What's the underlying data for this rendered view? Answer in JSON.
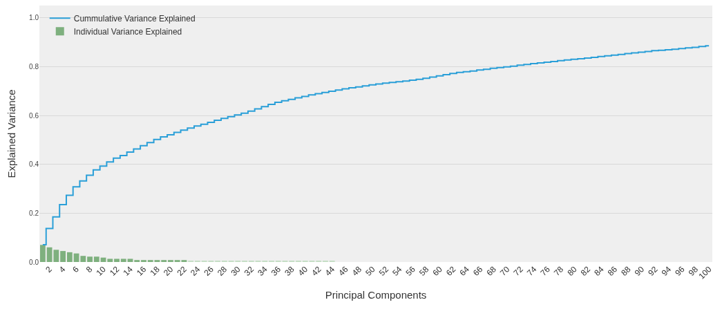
{
  "chart_data": {
    "type": "bar",
    "xlabel": "Principal Components",
    "ylabel": "Explained Variance",
    "x": [
      1,
      2,
      3,
      4,
      5,
      6,
      7,
      8,
      9,
      10,
      11,
      12,
      13,
      14,
      15,
      16,
      17,
      18,
      19,
      20,
      21,
      22,
      23,
      24,
      25,
      26,
      27,
      28,
      29,
      30,
      31,
      32,
      33,
      34,
      35,
      36,
      37,
      38,
      39,
      40,
      41,
      42,
      43,
      44,
      45,
      46,
      47,
      48,
      49,
      50,
      51,
      52,
      53,
      54,
      55,
      56,
      57,
      58,
      59,
      60,
      61,
      62,
      63,
      64,
      65,
      66,
      67,
      68,
      69,
      70,
      71,
      72,
      73,
      74,
      75,
      76,
      77,
      78,
      79,
      80,
      81,
      82,
      83,
      84,
      85,
      86,
      87,
      88,
      89,
      90,
      91,
      92,
      93,
      94,
      95,
      96,
      97,
      98,
      99,
      100
    ],
    "series": [
      {
        "type": "step",
        "name": "Cummulative Variance Explained",
        "color": "#2a9fd8",
        "values": [
          0.071,
          0.137,
          0.185,
          0.235,
          0.273,
          0.308,
          0.332,
          0.355,
          0.377,
          0.393,
          0.41,
          0.425,
          0.436,
          0.45,
          0.463,
          0.476,
          0.489,
          0.502,
          0.512,
          0.521,
          0.531,
          0.54,
          0.548,
          0.557,
          0.564,
          0.572,
          0.58,
          0.588,
          0.595,
          0.602,
          0.609,
          0.618,
          0.627,
          0.636,
          0.645,
          0.654,
          0.66,
          0.666,
          0.672,
          0.678,
          0.684,
          0.689,
          0.694,
          0.699,
          0.704,
          0.709,
          0.713,
          0.717,
          0.721,
          0.725,
          0.729,
          0.732,
          0.735,
          0.738,
          0.741,
          0.744,
          0.748,
          0.752,
          0.757,
          0.762,
          0.767,
          0.772,
          0.776,
          0.779,
          0.782,
          0.786,
          0.789,
          0.793,
          0.796,
          0.799,
          0.802,
          0.806,
          0.809,
          0.812,
          0.815,
          0.818,
          0.821,
          0.824,
          0.827,
          0.83,
          0.832,
          0.835,
          0.838,
          0.841,
          0.844,
          0.847,
          0.85,
          0.853,
          0.856,
          0.859,
          0.862,
          0.865,
          0.867,
          0.869,
          0.871,
          0.874,
          0.877,
          0.879,
          0.882,
          0.885
        ]
      },
      {
        "name": "Individual Variance Explained",
        "colors": [
          "#7eb07e",
          "#7eb07e",
          "#7eb07e",
          "#7eb07e",
          "#7eb07e",
          "#7eb07e",
          "#7eb07e",
          "#7eb07e",
          "#7eb07e",
          "#7eb07e",
          "#7eb07e",
          "#7eb07e",
          "#7eb07e",
          "#7eb07e",
          "#7eb07e",
          "#7eb07e",
          "#7eb07e",
          "#7eb07e",
          "#7eb07e",
          "#7eb07e",
          "#7eb07e",
          "#7eb07e",
          "#c5dec5",
          "#c5dec5",
          "#c5dec5",
          "#c5dec5",
          "#c5dec5",
          "#c5dec5",
          "#c5dec5",
          "#c5dec5",
          "#c5dec5",
          "#c5dec5",
          "#c5dec5",
          "#c5dec5",
          "#c5dec5",
          "#c5dec5",
          "#c5dec5",
          "#c5dec5",
          "#c5dec5",
          "#c5dec5",
          "#c5dec5",
          "#c5dec5",
          "#c5dec5",
          "#c5dec5",
          "#c5dec5",
          "#c5dec5",
          "#c5dec5",
          "#c5dec5",
          "#c5dec5",
          "#c5dec5",
          "#c5dec5",
          "#c5dec5",
          "#c5dec5",
          "#c5dec5",
          "#c5dec5",
          "#c5dec5",
          "#c5dec5",
          "#c5dec5",
          "#c5dec5",
          "#c5dec5",
          "#c5dec5",
          "#c5dec5",
          "#c5dec5",
          "#c5dec5",
          "#c5dec5",
          "#c5dec5",
          "#c5dec5",
          "#c5dec5",
          "#c5dec5",
          "#c5dec5",
          "#c5dec5",
          "#c5dec5",
          "#c5dec5",
          "#c5dec5",
          "#c5dec5",
          "#c5dec5",
          "#c5dec5",
          "#c5dec5",
          "#c5dec5",
          "#c5dec5",
          "#c5dec5",
          "#c5dec5",
          "#c5dec5",
          "#c5dec5",
          "#c5dec5",
          "#c5dec5",
          "#c5dec5",
          "#c5dec5",
          "#c5dec5",
          "#c5dec5",
          "#c5dec5",
          "#c5dec5",
          "#c5dec5",
          "#c5dec5",
          "#c5dec5",
          "#c5dec5",
          "#c5dec5",
          "#c5dec5",
          "#c5dec5",
          "#c5dec5"
        ],
        "values": [
          0.07,
          0.06,
          0.05,
          0.045,
          0.04,
          0.035,
          0.025,
          0.022,
          0.022,
          0.018,
          0.013,
          0.013,
          0.013,
          0.013,
          0.008,
          0.008,
          0.008,
          0.008,
          0.008,
          0.008,
          0.008,
          0.008,
          0.005,
          0.005,
          0.005,
          0.005,
          0.005,
          0.005,
          0.005,
          0.005,
          0.005,
          0.005,
          0.005,
          0.005,
          0.005,
          0.005,
          0.005,
          0.005,
          0.005,
          0.005,
          0.005,
          0.005,
          0.005,
          0.005,
          null,
          null,
          null,
          null,
          null,
          null,
          null,
          null,
          null,
          null,
          null,
          null,
          null,
          null,
          null,
          null,
          null,
          null,
          null,
          null,
          null,
          null,
          null,
          null,
          null,
          null,
          null,
          null,
          null,
          null,
          null,
          null,
          null,
          null,
          null,
          null,
          null,
          null,
          null,
          null,
          null,
          null,
          null,
          null,
          null,
          null,
          null,
          null,
          null,
          null,
          null,
          null,
          null,
          null,
          null,
          null
        ]
      }
    ],
    "xlim": [
      0.5,
      100.5
    ],
    "xticks": [
      2,
      4,
      6,
      8,
      10,
      12,
      14,
      16,
      18,
      20,
      22,
      24,
      26,
      28,
      30,
      32,
      34,
      36,
      38,
      40,
      42,
      44,
      46,
      48,
      50,
      52,
      54,
      56,
      58,
      60,
      62,
      64,
      66,
      68,
      70,
      72,
      74,
      76,
      78,
      80,
      82,
      84,
      86,
      88,
      90,
      92,
      94,
      96,
      98,
      100
    ],
    "ylim": [
      0,
      1.05
    ],
    "yticks": [
      {
        "value": 0,
        "label": "0.0"
      },
      {
        "value": 0.2,
        "label": "0.2"
      },
      {
        "value": 0.4,
        "label": "0.4"
      },
      {
        "value": 0.6,
        "label": "0.6"
      },
      {
        "value": 0.8,
        "label": "0.8"
      },
      {
        "value": 1,
        "label": "1.0"
      }
    ],
    "grid": "y",
    "legend": "top left"
  }
}
